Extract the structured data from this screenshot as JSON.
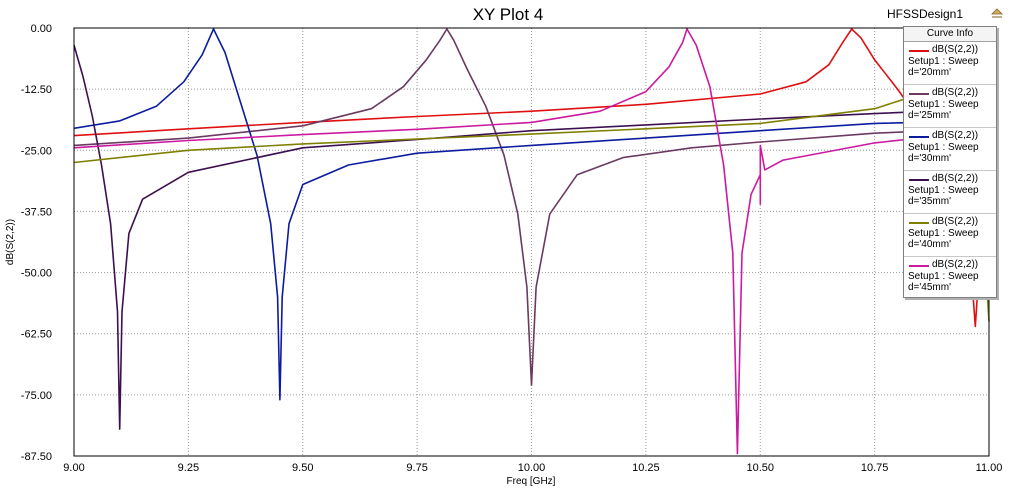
{
  "header": {
    "design_name": "HFSSDesign1"
  },
  "chart_data": {
    "type": "line",
    "title": "XY Plot 4",
    "xlabel": "Freq [GHz]",
    "ylabel": "dB(S(2,2))",
    "xlim": [
      9.0,
      11.0
    ],
    "ylim": [
      -87.5,
      0.0
    ],
    "x_ticks": [
      "9.00",
      "9.25",
      "9.50",
      "9.75",
      "10.00",
      "10.25",
      "10.50",
      "10.75",
      "11.00"
    ],
    "y_ticks": [
      "0.00",
      "-12.50",
      "-25.00",
      "-37.50",
      "-50.00",
      "-62.50",
      "-75.00",
      "-87.50"
    ],
    "grid": true,
    "legend_title": "Curve Info",
    "legend_position": "top-right",
    "series": [
      {
        "name": "dB(S(2,2))",
        "desc": "Setup1 : Sweep\nd='20mm'",
        "color": "#e01010",
        "points": [
          [
            9.0,
            -22.0
          ],
          [
            9.25,
            -20.6
          ],
          [
            9.5,
            -19.3
          ],
          [
            9.75,
            -18.1
          ],
          [
            10.0,
            -17.0
          ],
          [
            10.25,
            -15.6
          ],
          [
            10.5,
            -13.5
          ],
          [
            10.6,
            -11.0
          ],
          [
            10.65,
            -7.5
          ],
          [
            10.68,
            -3.0
          ],
          [
            10.7,
            -0.2
          ],
          [
            10.72,
            -2.0
          ],
          [
            10.75,
            -6.5
          ],
          [
            10.8,
            -12.5
          ],
          [
            10.85,
            -19.0
          ],
          [
            10.9,
            -27.0
          ],
          [
            10.94,
            -37.0
          ],
          [
            10.96,
            -48.0
          ],
          [
            10.97,
            -61.0
          ],
          [
            10.98,
            -47.0
          ],
          [
            11.0,
            -36.0
          ]
        ]
      },
      {
        "name": "dB(S(2,2))",
        "desc": "Setup1 : Sweep\nd='25mm'",
        "color": "#6a3a60",
        "points": [
          [
            9.0,
            -24.0
          ],
          [
            9.25,
            -22.5
          ],
          [
            9.5,
            -20.0
          ],
          [
            9.65,
            -16.5
          ],
          [
            9.72,
            -12.0
          ],
          [
            9.77,
            -6.5
          ],
          [
            9.8,
            -2.5
          ],
          [
            9.815,
            -0.2
          ],
          [
            9.83,
            -2.5
          ],
          [
            9.86,
            -8.5
          ],
          [
            9.9,
            -16.0
          ],
          [
            9.94,
            -26.0
          ],
          [
            9.97,
            -38.0
          ],
          [
            9.99,
            -53.0
          ],
          [
            10.0,
            -73.0
          ],
          [
            10.01,
            -53.0
          ],
          [
            10.04,
            -38.0
          ],
          [
            10.1,
            -30.0
          ],
          [
            10.2,
            -26.5
          ],
          [
            10.35,
            -24.5
          ],
          [
            10.5,
            -23.3
          ],
          [
            10.75,
            -21.5
          ],
          [
            11.0,
            -20.5
          ]
        ]
      },
      {
        "name": "dB(S(2,2))",
        "desc": "Setup1 : Sweep\nd='30mm'",
        "color": "#0c1ca0",
        "points": [
          [
            9.0,
            -20.5
          ],
          [
            9.1,
            -19.0
          ],
          [
            9.18,
            -16.0
          ],
          [
            9.24,
            -11.0
          ],
          [
            9.28,
            -5.5
          ],
          [
            9.305,
            -0.2
          ],
          [
            9.33,
            -5.0
          ],
          [
            9.36,
            -14.0
          ],
          [
            9.4,
            -26.0
          ],
          [
            9.43,
            -40.0
          ],
          [
            9.445,
            -55.0
          ],
          [
            9.45,
            -76.0
          ],
          [
            9.455,
            -55.0
          ],
          [
            9.47,
            -40.0
          ],
          [
            9.5,
            -32.0
          ],
          [
            9.6,
            -28.0
          ],
          [
            9.75,
            -25.6
          ],
          [
            10.0,
            -24.0
          ],
          [
            10.25,
            -22.5
          ],
          [
            10.5,
            -21.0
          ],
          [
            10.75,
            -19.5
          ],
          [
            11.0,
            -19.0
          ]
        ]
      },
      {
        "name": "dB(S(2,2))",
        "desc": "Setup1 : Sweep\nd='35mm'",
        "color": "#3c1050",
        "points": [
          [
            9.0,
            -3.5
          ],
          [
            9.02,
            -10.0
          ],
          [
            9.04,
            -18.0
          ],
          [
            9.06,
            -28.0
          ],
          [
            9.08,
            -40.0
          ],
          [
            9.095,
            -58.0
          ],
          [
            9.1,
            -82.0
          ],
          [
            9.105,
            -58.0
          ],
          [
            9.12,
            -42.0
          ],
          [
            9.15,
            -35.0
          ],
          [
            9.25,
            -29.5
          ],
          [
            9.5,
            -24.5
          ],
          [
            9.75,
            -22.8
          ],
          [
            10.0,
            -21.0
          ],
          [
            10.25,
            -19.8
          ],
          [
            10.5,
            -18.6
          ],
          [
            10.75,
            -17.5
          ],
          [
            11.0,
            -16.5
          ]
        ]
      },
      {
        "name": "dB(S(2,2))",
        "desc": "Setup1 : Sweep\nd='40mm'",
        "color": "#808000",
        "points": [
          [
            9.0,
            -27.5
          ],
          [
            9.25,
            -25.0
          ],
          [
            9.5,
            -23.7
          ],
          [
            9.75,
            -22.7
          ],
          [
            10.0,
            -21.7
          ],
          [
            10.25,
            -20.6
          ],
          [
            10.5,
            -19.5
          ],
          [
            10.75,
            -16.5
          ],
          [
            10.85,
            -13.5
          ],
          [
            10.9,
            -11.5
          ],
          [
            10.95,
            -15.0
          ],
          [
            10.98,
            -30.0
          ],
          [
            11.0,
            -60.0
          ]
        ]
      },
      {
        "name": "dB(S(2,2))",
        "desc": "Setup1 : Sweep\nd='45mm'",
        "color": "#cc1aa0",
        "points": [
          [
            9.0,
            -24.5
          ],
          [
            9.25,
            -23.0
          ],
          [
            9.5,
            -21.8
          ],
          [
            9.75,
            -20.7
          ],
          [
            10.0,
            -19.3
          ],
          [
            10.15,
            -17.0
          ],
          [
            10.25,
            -13.0
          ],
          [
            10.3,
            -8.0
          ],
          [
            10.33,
            -3.0
          ],
          [
            10.34,
            -0.2
          ],
          [
            10.36,
            -3.5
          ],
          [
            10.39,
            -12.0
          ],
          [
            10.42,
            -28.0
          ],
          [
            10.44,
            -46.0
          ],
          [
            10.45,
            -87.0
          ],
          [
            10.46,
            -46.0
          ],
          [
            10.48,
            -34.0
          ],
          [
            10.5,
            -30.0
          ],
          [
            10.5,
            -36.0
          ],
          [
            10.5,
            -24.0
          ],
          [
            10.51,
            -29.0
          ],
          [
            10.55,
            -27.0
          ],
          [
            10.75,
            -23.5
          ],
          [
            11.0,
            -21.0
          ]
        ]
      }
    ]
  }
}
